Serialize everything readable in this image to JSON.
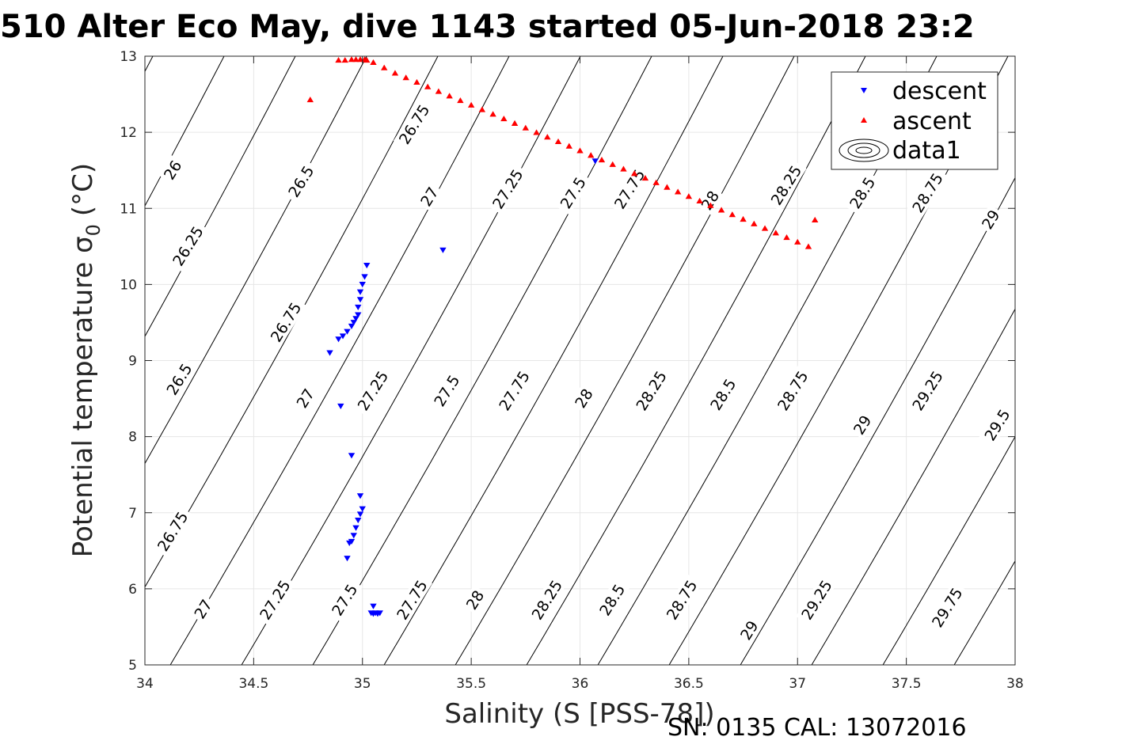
{
  "figure": {
    "title": "510 Alter Eco May, dive 1143 started 05-Jun-2018 23:2",
    "footer": "SN: 0135  CAL: 13072016"
  },
  "colors": {
    "descent": "#0000ff",
    "ascent": "#ff0000",
    "contour": "#000000",
    "grid": "#e6e6e6",
    "axis": "#262626"
  },
  "chart_data": {
    "type": "scatter",
    "xlabel": "Salinity (S [PSS-78])",
    "ylabel": "Potential temperature σ",
    "ylabel_subscript": "0",
    "ylabel_unit": "(°C)",
    "xlim": [
      34,
      38
    ],
    "ylim": [
      5,
      13
    ],
    "xticks": [
      "34",
      "34.5",
      "35",
      "35.5",
      "36",
      "36.5",
      "37",
      "37.5",
      "38"
    ],
    "yticks": [
      "5",
      "6",
      "7",
      "8",
      "9",
      "10",
      "11",
      "12",
      "13"
    ],
    "grid": true,
    "legend_position": "top-right",
    "legend": [
      {
        "label": "descent",
        "marker": "triangle-down",
        "color": "#0000ff"
      },
      {
        "label": "ascent",
        "marker": "triangle-up",
        "color": "#ff0000"
      },
      {
        "label": "data1",
        "marker": "contour",
        "color": "#000000"
      }
    ],
    "series": [
      {
        "name": "descent",
        "marker": "triangle-down",
        "x": [
          36.07,
          35.37,
          35.02,
          35.01,
          35.0,
          34.99,
          34.99,
          34.98,
          34.98,
          34.97,
          34.96,
          34.95,
          34.93,
          34.91,
          34.89,
          34.85,
          34.9,
          34.95,
          34.99,
          35.0,
          34.99,
          34.98,
          34.97,
          34.96,
          34.95,
          34.93,
          34.94,
          35.05,
          35.04,
          35.05,
          35.06,
          35.07,
          35.08
        ],
        "y": [
          11.62,
          10.45,
          10.25,
          10.1,
          10.0,
          9.9,
          9.8,
          9.7,
          9.6,
          9.55,
          9.5,
          9.45,
          9.38,
          9.32,
          9.28,
          9.1,
          8.4,
          7.75,
          7.22,
          7.05,
          6.98,
          6.9,
          6.8,
          6.7,
          6.62,
          6.4,
          6.6,
          5.77,
          5.68,
          5.67,
          5.68,
          5.67,
          5.68
        ]
      },
      {
        "name": "ascent",
        "marker": "triangle-up",
        "x": [
          34.76,
          34.89,
          34.92,
          34.95,
          34.97,
          34.99,
          35.01,
          35.02,
          35.05,
          35.1,
          35.15,
          35.2,
          35.25,
          35.3,
          35.35,
          35.4,
          35.45,
          35.5,
          35.55,
          35.6,
          35.65,
          35.7,
          35.75,
          35.8,
          35.85,
          35.9,
          35.95,
          36.0,
          36.05,
          36.1,
          36.15,
          36.2,
          36.25,
          36.3,
          36.35,
          36.4,
          36.45,
          36.5,
          36.55,
          36.6,
          36.65,
          36.7,
          36.75,
          36.8,
          36.85,
          36.9,
          36.95,
          37.0,
          37.05,
          37.08
        ],
        "y": [
          12.43,
          12.95,
          12.95,
          12.96,
          12.96,
          12.96,
          12.96,
          12.95,
          12.92,
          12.85,
          12.78,
          12.72,
          12.66,
          12.6,
          12.54,
          12.48,
          12.42,
          12.36,
          12.3,
          12.24,
          12.18,
          12.12,
          12.06,
          12.0,
          11.94,
          11.88,
          11.82,
          11.76,
          11.7,
          11.64,
          11.58,
          11.52,
          11.46,
          11.4,
          11.34,
          11.28,
          11.22,
          11.16,
          11.1,
          11.04,
          10.98,
          10.92,
          10.86,
          10.8,
          10.74,
          10.68,
          10.62,
          10.56,
          10.5,
          10.85
        ]
      }
    ],
    "contours": {
      "name": "data1",
      "label_values": [
        "26",
        "26.25",
        "26.5",
        "26.75",
        "27",
        "27.25",
        "27.5",
        "27.75",
        "28",
        "28.25",
        "28.5",
        "28.75",
        "29",
        "29.25",
        "29.5",
        "29.75"
      ],
      "labels": [
        {
          "text": "26",
          "x": 34.13,
          "y": 11.5
        },
        {
          "text": "26.25",
          "x": 34.2,
          "y": 10.5
        },
        {
          "text": "26.5",
          "x": 34.16,
          "y": 8.75
        },
        {
          "text": "26.75",
          "x": 34.13,
          "y": 6.75
        },
        {
          "text": "27",
          "x": 34.27,
          "y": 5.73
        },
        {
          "text": "26.5",
          "x": 34.72,
          "y": 11.35
        },
        {
          "text": "26.75",
          "x": 34.65,
          "y": 9.5
        },
        {
          "text": "27",
          "x": 34.74,
          "y": 8.5
        },
        {
          "text": "27.25",
          "x": 34.6,
          "y": 5.85
        },
        {
          "text": "26.75",
          "x": 35.24,
          "y": 12.1
        },
        {
          "text": "27",
          "x": 35.31,
          "y": 11.15
        },
        {
          "text": "27.25",
          "x": 35.05,
          "y": 8.6
        },
        {
          "text": "27.5",
          "x": 34.92,
          "y": 5.85
        },
        {
          "text": "27.25",
          "x": 35.67,
          "y": 11.25
        },
        {
          "text": "27.5",
          "x": 35.39,
          "y": 8.6
        },
        {
          "text": "27.75",
          "x": 35.23,
          "y": 5.85
        },
        {
          "text": "27.5",
          "x": 35.97,
          "y": 11.2
        },
        {
          "text": "27.75",
          "x": 35.7,
          "y": 8.6
        },
        {
          "text": "28",
          "x": 35.52,
          "y": 5.85
        },
        {
          "text": "27.75",
          "x": 36.23,
          "y": 11.25
        },
        {
          "text": "28",
          "x": 36.02,
          "y": 8.5
        },
        {
          "text": "28.25",
          "x": 35.85,
          "y": 5.85
        },
        {
          "text": "28",
          "x": 36.6,
          "y": 11.1
        },
        {
          "text": "28.25",
          "x": 36.33,
          "y": 8.6
        },
        {
          "text": "28.5",
          "x": 36.15,
          "y": 5.85
        },
        {
          "text": "28.25",
          "x": 36.95,
          "y": 11.3
        },
        {
          "text": "28.5",
          "x": 36.66,
          "y": 8.55
        },
        {
          "text": "28.75",
          "x": 36.47,
          "y": 5.85
        },
        {
          "text": "28.5",
          "x": 37.3,
          "y": 11.2
        },
        {
          "text": "28.75",
          "x": 36.98,
          "y": 8.6
        },
        {
          "text": "29",
          "x": 36.78,
          "y": 5.45
        },
        {
          "text": "28.75",
          "x": 37.6,
          "y": 11.2
        },
        {
          "text": "29",
          "x": 37.3,
          "y": 8.15
        },
        {
          "text": "29.25",
          "x": 37.09,
          "y": 5.85
        },
        {
          "text": "29",
          "x": 37.89,
          "y": 10.85
        },
        {
          "text": "29.25",
          "x": 37.6,
          "y": 8.6
        },
        {
          "text": "29.75",
          "x": 37.69,
          "y": 5.75
        },
        {
          "text": "29.5",
          "x": 37.92,
          "y": 8.15
        }
      ]
    }
  }
}
